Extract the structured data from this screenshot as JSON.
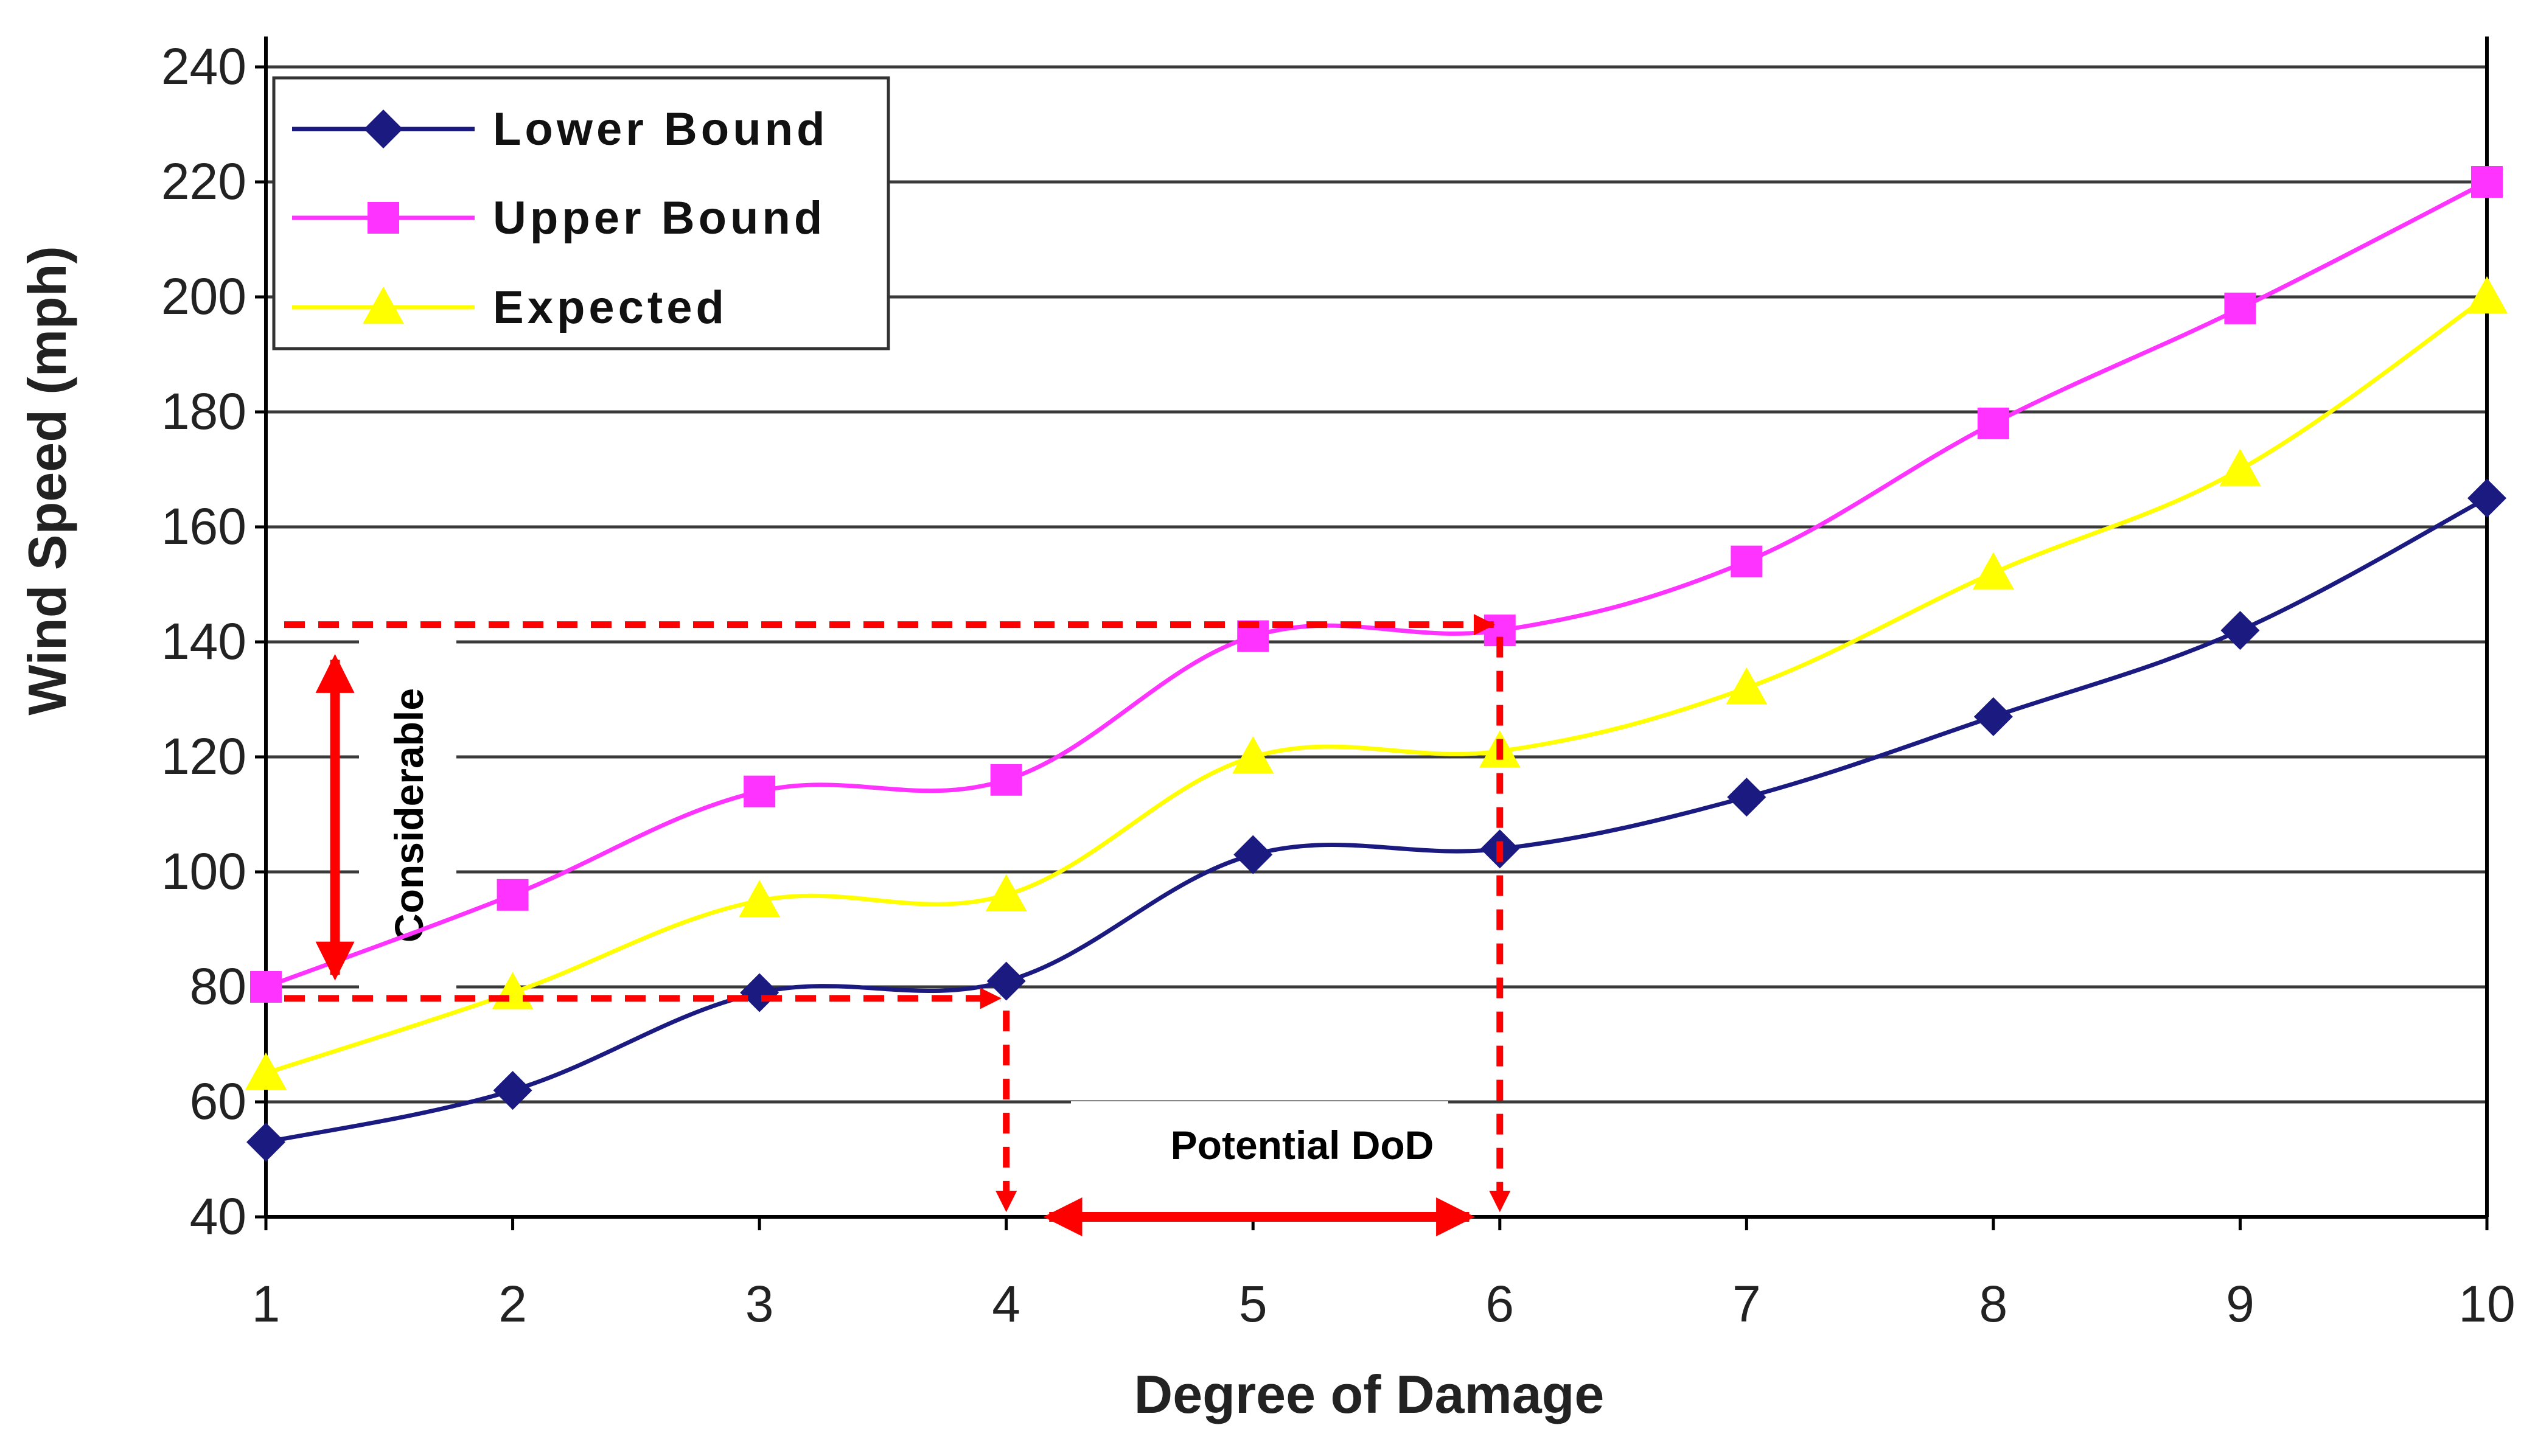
{
  "chart_data": {
    "type": "line",
    "title": "",
    "xlabel": "Degree of Damage",
    "ylabel": "Wind Speed (mph)",
    "xlim": [
      1,
      10
    ],
    "ylim": [
      40,
      240
    ],
    "x_ticks": [
      "1",
      "2",
      "3",
      "4",
      "5",
      "6",
      "7",
      "8",
      "9",
      "10"
    ],
    "y_ticks": [
      "40",
      "60",
      "80",
      "100",
      "120",
      "140",
      "160",
      "180",
      "200",
      "220",
      "240"
    ],
    "grid": "horizontal",
    "legend_position": "top-left",
    "series": [
      {
        "name": "Lower Bound",
        "color": "#1a1a80",
        "marker": "diamond",
        "x": [
          1,
          2,
          3,
          4,
          5,
          6,
          7,
          8,
          9,
          10
        ],
        "y": [
          53,
          62,
          79,
          81,
          103,
          104,
          113,
          127,
          142,
          165
        ]
      },
      {
        "name": "Upper Bound",
        "color": "#ff33ff",
        "marker": "square",
        "x": [
          1,
          2,
          3,
          4,
          5,
          6,
          7,
          8,
          9,
          10
        ],
        "y": [
          80,
          96,
          114,
          116,
          141,
          142,
          154,
          178,
          198,
          220
        ]
      },
      {
        "name": "Expected",
        "color": "#ffff00",
        "marker": "triangle",
        "x": [
          1,
          2,
          3,
          4,
          5,
          6,
          7,
          8,
          9,
          10
        ],
        "y": [
          65,
          79,
          95,
          96,
          120,
          121,
          132,
          152,
          170,
          200
        ]
      }
    ],
    "annotations": {
      "vertical_label": "Considerable",
      "horizontal_label": "Potential DoD",
      "color": "#ff0000",
      "dashed_high": {
        "y": 143,
        "x_end": 6
      },
      "dashed_low": {
        "y": 78,
        "x_end": 4
      },
      "vertical_arrow": {
        "x": 1.28,
        "y_from": 80,
        "y_to": 139
      },
      "horizontal_arrow": {
        "y": 40,
        "x_from": 4.1,
        "x_to": 5.95
      }
    }
  }
}
